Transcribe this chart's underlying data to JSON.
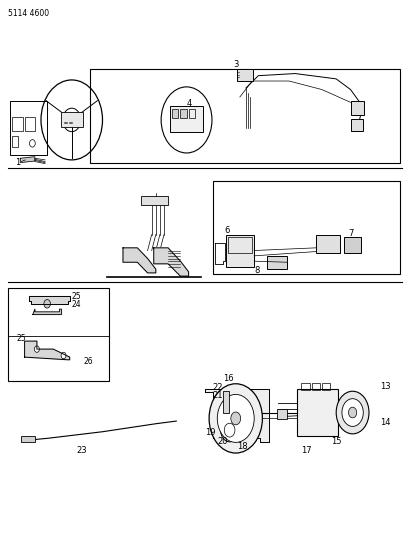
{
  "title_code": "5114 4600",
  "bg_color": "#ffffff",
  "line_color": "#000000",
  "fig_width": 4.1,
  "fig_height": 5.33,
  "dpi": 100
}
